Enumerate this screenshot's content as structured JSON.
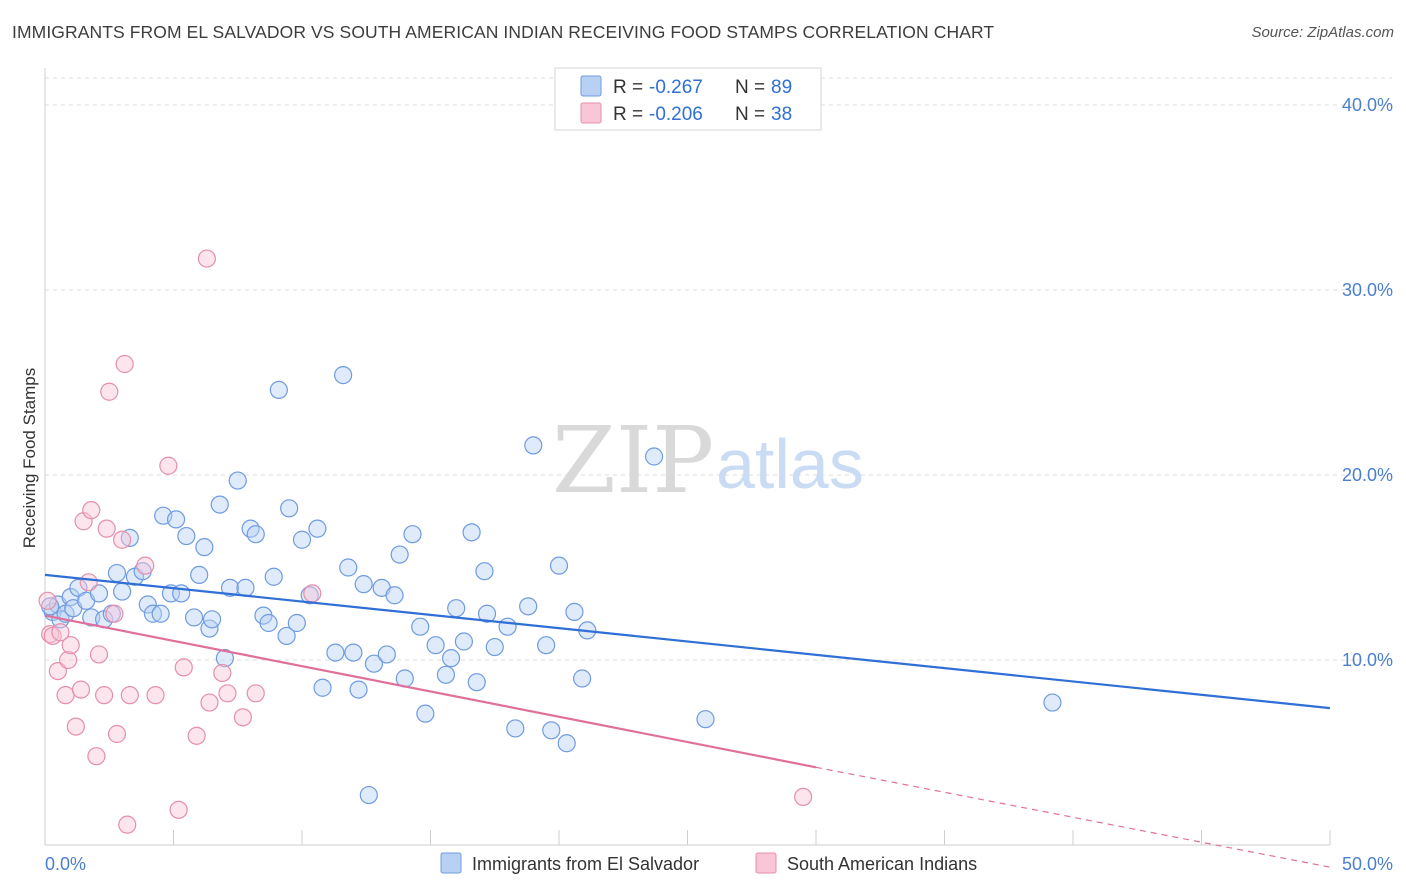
{
  "title": "IMMIGRANTS FROM EL SALVADOR VS SOUTH AMERICAN INDIAN RECEIVING FOOD STAMPS CORRELATION CHART",
  "source": "Source: ZipAtlas.com",
  "watermark": {
    "zip": "ZIP",
    "atlas": "atlas"
  },
  "colors": {
    "blue_fill": "#b8d1f3",
    "blue_stroke": "#6f9be0",
    "blue_line": "#2f6fd6",
    "pink_fill": "#f8c6d6",
    "pink_stroke": "#e58fab",
    "pink_line": "#e0709a",
    "grid": "#dcdcdc",
    "tick_text": "#4a7fd0"
  },
  "legend": {
    "rows": [
      {
        "r_label": "R =",
        "r_value": "-0.267",
        "n_label": "N =",
        "n_value": "89"
      },
      {
        "r_label": "R =",
        "r_value": "-0.206",
        "n_label": "N =",
        "n_value": "38"
      }
    ]
  },
  "chart_data": {
    "type": "scatter",
    "title": "IMMIGRANTS FROM EL SALVADOR VS SOUTH AMERICAN INDIAN RECEIVING FOOD STAMPS CORRELATION CHART",
    "xlabel": "",
    "ylabel": "Receiving Food Stamps",
    "xlim": [
      0,
      50
    ],
    "ylim": [
      0,
      42
    ],
    "x_tick_labels": [
      "0.0%",
      "50.0%"
    ],
    "y_ticks": [
      10,
      20,
      30,
      40
    ],
    "y_tick_labels": [
      "10.0%",
      "20.0%",
      "30.0%",
      "40.0%"
    ],
    "grid": "horizontal dashed",
    "legend_position": "top-center",
    "series": [
      {
        "name": "Immigrants from El Salvador",
        "r": -0.267,
        "n": 89,
        "trend": {
          "x": [
            0,
            50
          ],
          "y": [
            14.6,
            7.4
          ]
        },
        "points": [
          [
            0.3,
            12.6
          ],
          [
            0.5,
            13.0
          ],
          [
            0.6,
            12.2
          ],
          [
            0.8,
            12.5
          ],
          [
            1.0,
            13.4
          ],
          [
            1.1,
            12.8
          ],
          [
            1.3,
            13.9
          ],
          [
            1.6,
            13.2
          ],
          [
            1.8,
            12.3
          ],
          [
            2.1,
            13.6
          ],
          [
            2.3,
            12.2
          ],
          [
            2.6,
            12.5
          ],
          [
            2.8,
            14.7
          ],
          [
            3.0,
            13.7
          ],
          [
            3.3,
            16.6
          ],
          [
            3.5,
            14.5
          ],
          [
            3.8,
            14.8
          ],
          [
            4.0,
            13.0
          ],
          [
            4.2,
            12.5
          ],
          [
            4.5,
            12.5
          ],
          [
            4.6,
            17.8
          ],
          [
            4.9,
            13.6
          ],
          [
            5.1,
            17.6
          ],
          [
            5.3,
            13.6
          ],
          [
            5.5,
            16.7
          ],
          [
            5.8,
            12.3
          ],
          [
            6.0,
            14.6
          ],
          [
            6.2,
            16.1
          ],
          [
            6.4,
            11.7
          ],
          [
            6.5,
            12.2
          ],
          [
            6.8,
            18.4
          ],
          [
            7.0,
            10.1
          ],
          [
            7.2,
            13.9
          ],
          [
            7.5,
            19.7
          ],
          [
            7.8,
            13.9
          ],
          [
            8.0,
            17.1
          ],
          [
            8.2,
            16.8
          ],
          [
            8.5,
            12.4
          ],
          [
            8.7,
            12.0
          ],
          [
            8.9,
            14.5
          ],
          [
            9.1,
            24.6
          ],
          [
            9.4,
            11.3
          ],
          [
            9.5,
            18.2
          ],
          [
            9.8,
            12.0
          ],
          [
            10.0,
            16.5
          ],
          [
            10.3,
            13.5
          ],
          [
            10.6,
            17.1
          ],
          [
            10.8,
            8.5
          ],
          [
            11.3,
            10.4
          ],
          [
            11.6,
            25.4
          ],
          [
            11.8,
            15.0
          ],
          [
            12.0,
            10.4
          ],
          [
            12.2,
            8.4
          ],
          [
            12.4,
            14.1
          ],
          [
            12.6,
            2.7
          ],
          [
            12.8,
            9.8
          ],
          [
            13.1,
            13.9
          ],
          [
            13.3,
            10.3
          ],
          [
            13.6,
            13.5
          ],
          [
            13.8,
            15.7
          ],
          [
            14.0,
            9.0
          ],
          [
            14.3,
            16.8
          ],
          [
            14.6,
            11.8
          ],
          [
            14.8,
            7.1
          ],
          [
            15.2,
            10.8
          ],
          [
            15.6,
            9.2
          ],
          [
            15.8,
            10.1
          ],
          [
            16.0,
            12.8
          ],
          [
            16.3,
            11.0
          ],
          [
            16.6,
            16.9
          ],
          [
            16.8,
            8.8
          ],
          [
            17.1,
            14.8
          ],
          [
            17.2,
            12.5
          ],
          [
            17.5,
            10.7
          ],
          [
            18.0,
            11.8
          ],
          [
            18.3,
            6.3
          ],
          [
            18.8,
            12.9
          ],
          [
            19.0,
            21.6
          ],
          [
            19.5,
            10.8
          ],
          [
            19.7,
            6.2
          ],
          [
            20.0,
            15.1
          ],
          [
            20.3,
            5.5
          ],
          [
            20.6,
            12.6
          ],
          [
            20.9,
            9.0
          ],
          [
            21.1,
            11.6
          ],
          [
            23.7,
            21.0
          ],
          [
            25.7,
            6.8
          ],
          [
            39.2,
            7.7
          ],
          [
            0.2,
            12.9
          ]
        ]
      },
      {
        "name": "South American Indians",
        "r": -0.206,
        "n": 38,
        "trend": {
          "x": [
            0,
            30
          ],
          "y": [
            12.4,
            4.2
          ]
        },
        "trend_dashed": {
          "x": [
            30,
            50
          ],
          "y": [
            4.2,
            -1.2
          ]
        },
        "points": [
          [
            0.1,
            13.2
          ],
          [
            0.2,
            11.4
          ],
          [
            0.3,
            11.3
          ],
          [
            0.5,
            9.4
          ],
          [
            0.6,
            11.5
          ],
          [
            0.8,
            8.1
          ],
          [
            0.9,
            10.0
          ],
          [
            1.0,
            10.8
          ],
          [
            1.2,
            6.4
          ],
          [
            1.4,
            8.4
          ],
          [
            1.5,
            17.5
          ],
          [
            1.7,
            14.2
          ],
          [
            1.8,
            18.1
          ],
          [
            2.0,
            4.8
          ],
          [
            2.1,
            10.3
          ],
          [
            2.3,
            8.1
          ],
          [
            2.4,
            17.1
          ],
          [
            2.7,
            12.5
          ],
          [
            2.8,
            6.0
          ],
          [
            3.0,
            16.5
          ],
          [
            3.1,
            26.0
          ],
          [
            3.2,
            1.1
          ],
          [
            3.3,
            8.1
          ],
          [
            2.5,
            24.5
          ],
          [
            3.9,
            15.1
          ],
          [
            4.3,
            8.1
          ],
          [
            4.8,
            20.5
          ],
          [
            5.2,
            1.9
          ],
          [
            5.4,
            9.6
          ],
          [
            5.9,
            5.9
          ],
          [
            6.3,
            31.7
          ],
          [
            6.4,
            7.7
          ],
          [
            6.9,
            9.3
          ],
          [
            7.1,
            8.2
          ],
          [
            7.7,
            6.9
          ],
          [
            8.2,
            8.2
          ],
          [
            10.4,
            13.6
          ],
          [
            29.5,
            2.6
          ]
        ]
      }
    ]
  }
}
